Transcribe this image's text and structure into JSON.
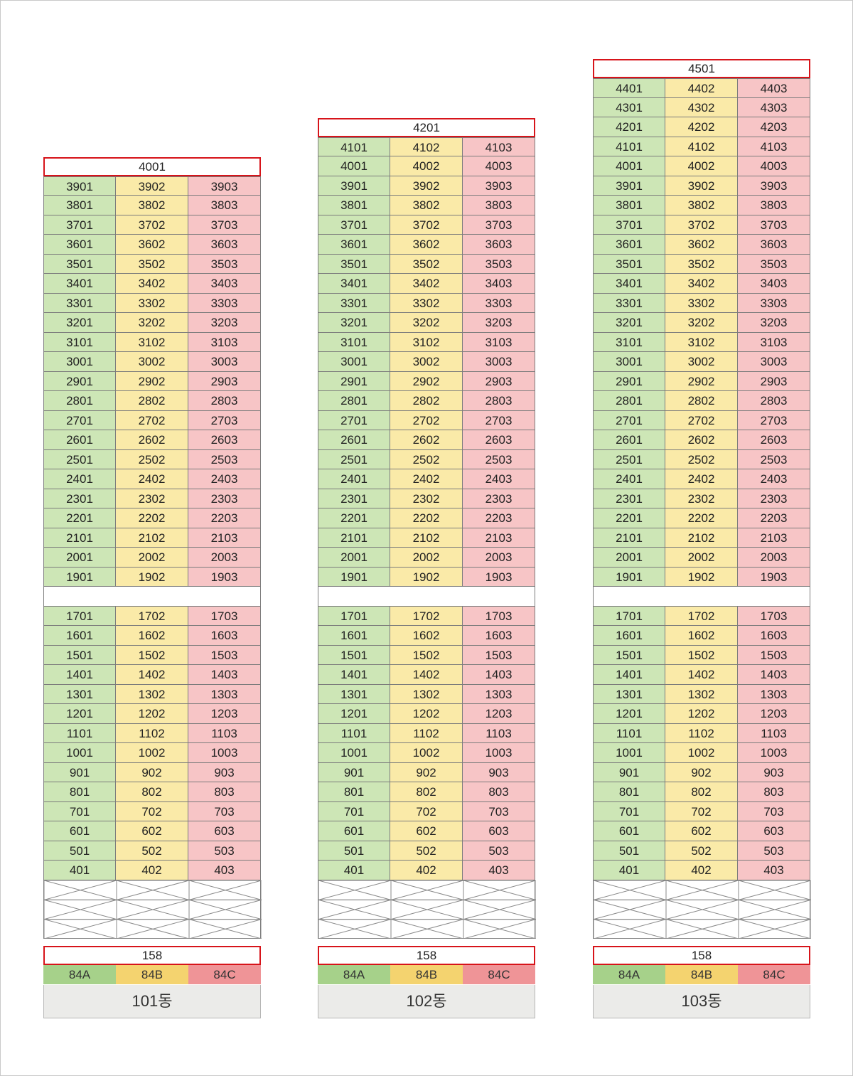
{
  "colors": {
    "type_84A": "#a6d18a",
    "type_84B": "#f4d36f",
    "type_84C": "#ef9497",
    "unit_84A": "#cde6b6",
    "unit_84B": "#faeaa8",
    "unit_84C": "#f7c5c6",
    "highlight_border": "#d7141a",
    "building_label_bg": "#ebebe9"
  },
  "buildings": [
    {
      "name": "101동",
      "penthouse": "4001",
      "top_floor": 39,
      "skipped_floor": 18,
      "bottom_floor": 4,
      "pilotis_rows": 3,
      "area": "158",
      "types": [
        "84A",
        "84B",
        "84C"
      ]
    },
    {
      "name": "102동",
      "penthouse": "4201",
      "top_floor": 41,
      "skipped_floor": 18,
      "bottom_floor": 4,
      "pilotis_rows": 3,
      "area": "158",
      "types": [
        "84A",
        "84B",
        "84C"
      ]
    },
    {
      "name": "103동",
      "penthouse": "4501",
      "top_floor": 44,
      "skipped_floor": 18,
      "bottom_floor": 4,
      "pilotis_rows": 3,
      "area": "158",
      "types": [
        "84A",
        "84B",
        "84C"
      ]
    }
  ]
}
